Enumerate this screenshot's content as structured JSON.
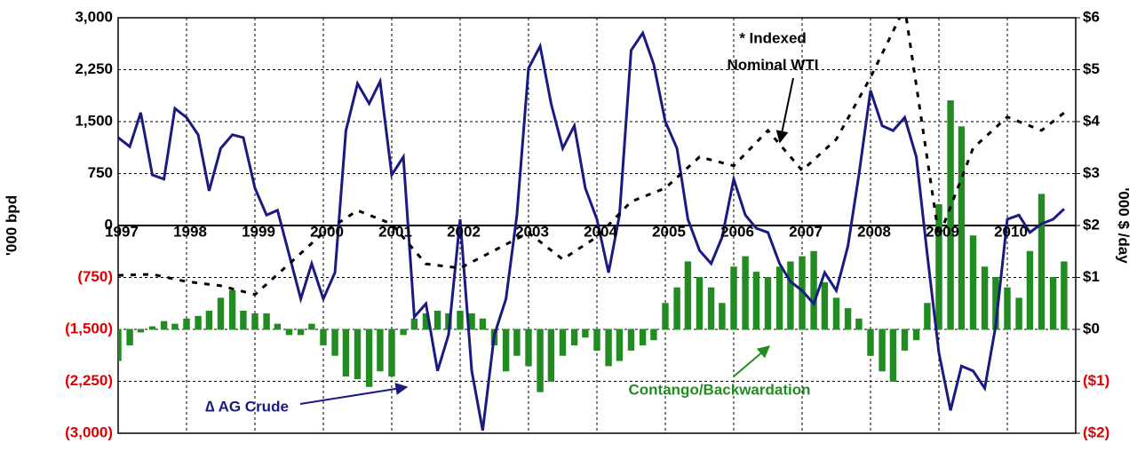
{
  "chart_data": {
    "type": "combo",
    "ylabel": "'000 bpd",
    "y2label": "'000 $ /day",
    "annotations": [
      "* Indexed",
      "Nominal WTI",
      "∆ AG Crude",
      "Contango/Backwardation"
    ],
    "grid": true,
    "xlim": [
      1997,
      2011
    ],
    "xticks": [
      1997,
      1998,
      1999,
      2000,
      2001,
      2002,
      2003,
      2004,
      2005,
      2006,
      2007,
      2008,
      2009,
      2010
    ],
    "ylim": [
      -3000,
      3000
    ],
    "yticks": [
      {
        "value": 3000,
        "label": "3,000"
      },
      {
        "value": 2250,
        "label": "2,250"
      },
      {
        "value": 1500,
        "label": "1,500"
      },
      {
        "value": 750,
        "label": "750"
      },
      {
        "value": 0,
        "label": "0"
      },
      {
        "value": -750,
        "label": "(750)"
      },
      {
        "value": -1500,
        "label": "(1,500)"
      },
      {
        "value": -2250,
        "label": "(2,250)"
      },
      {
        "value": -3000,
        "label": "(3,000)"
      }
    ],
    "y2lim": [
      -2,
      6
    ],
    "y2ticks": [
      {
        "value": 6,
        "label": "$6"
      },
      {
        "value": 5,
        "label": "$5"
      },
      {
        "value": 4,
        "label": "$4"
      },
      {
        "value": 3,
        "label": "$3"
      },
      {
        "value": 2,
        "label": "$2"
      },
      {
        "value": 1,
        "label": "$1"
      },
      {
        "value": 0,
        "label": "$0"
      },
      {
        "value": -1,
        "label": "($1)"
      },
      {
        "value": -2,
        "label": "($2)"
      }
    ],
    "x": [
      1997,
      1997.17,
      1997.33,
      1997.5,
      1997.67,
      1997.83,
      1998,
      1998.17,
      1998.33,
      1998.5,
      1998.67,
      1998.83,
      1999,
      1999.17,
      1999.33,
      1999.5,
      1999.67,
      1999.83,
      2000,
      2000.17,
      2000.33,
      2000.5,
      2000.67,
      2000.83,
      2001,
      2001.17,
      2001.33,
      2001.5,
      2001.67,
      2001.83,
      2002,
      2002.17,
      2002.33,
      2002.5,
      2002.67,
      2002.83,
      2003,
      2003.17,
      2003.33,
      2003.5,
      2003.67,
      2003.83,
      2004,
      2004.17,
      2004.33,
      2004.5,
      2004.67,
      2004.83,
      2005,
      2005.17,
      2005.33,
      2005.5,
      2005.67,
      2005.83,
      2006,
      2006.17,
      2006.33,
      2006.5,
      2006.67,
      2006.83,
      2007,
      2007.17,
      2007.33,
      2007.5,
      2007.67,
      2007.83,
      2008,
      2008.17,
      2008.33,
      2008.5,
      2008.67,
      2008.83,
      2009,
      2009.17,
      2009.33,
      2009.5,
      2009.67,
      2009.83,
      2010,
      2010.17,
      2010.33,
      2010.5,
      2010.67,
      2010.83
    ],
    "series": [
      {
        "type": "bar",
        "axis": "y2",
        "color": "#228b22",
        "values": [
          -0.6,
          -0.3,
          -0.05,
          0.05,
          0.15,
          0.1,
          0.2,
          0.25,
          0.35,
          0.6,
          0.75,
          0.35,
          0.3,
          0.3,
          0.1,
          -0.1,
          -0.1,
          0.1,
          -0.3,
          -0.5,
          -0.9,
          -0.95,
          -1.1,
          -0.8,
          -0.9,
          -0.1,
          0.2,
          0.3,
          0.35,
          0.3,
          0.35,
          0.3,
          0.2,
          -0.3,
          -0.8,
          -0.5,
          -0.7,
          -1.2,
          -1.0,
          -0.5,
          -0.3,
          -0.15,
          -0.4,
          -0.7,
          -0.6,
          -0.4,
          -0.3,
          -0.2,
          0.5,
          0.8,
          1.3,
          1.0,
          0.8,
          0.5,
          1.2,
          1.4,
          1.1,
          1.0,
          1.2,
          1.3,
          1.4,
          1.5,
          0.9,
          0.6,
          0.4,
          0.2,
          -0.5,
          -0.8,
          -1.0,
          -0.4,
          -0.2,
          0.5,
          2.4,
          4.4,
          3.9,
          1.8,
          1.2,
          1.0,
          0.8,
          0.6,
          1.5,
          2.6,
          1.0,
          1.3
        ]
      },
      {
        "type": "line",
        "axis": "y",
        "color": "#1a1a80",
        "values": [
          1270,
          1140,
          1630,
          730,
          670,
          1690,
          1560,
          1310,
          500,
          1115,
          1310,
          1270,
          540,
          150,
          220,
          -420,
          -1060,
          -550,
          -1060,
          -680,
          1370,
          2050,
          1760,
          2080,
          730,
          990,
          -1320,
          -1130,
          -2100,
          -1580,
          90,
          -2100,
          -2960,
          -1580,
          -1060,
          150,
          2270,
          2590,
          1760,
          1115,
          1440,
          540,
          90,
          -680,
          150,
          2530,
          2780,
          2330,
          1500,
          1115,
          90,
          -360,
          -550,
          -170,
          670,
          150,
          -40,
          -100,
          -550,
          -810,
          -940,
          -1130,
          -680,
          -940,
          -295,
          730,
          1950,
          1440,
          1370,
          1560,
          990,
          -420,
          -1840,
          -2670,
          -2030,
          -2100,
          -2350,
          -1450,
          90,
          150,
          -100,
          25,
          90,
          240
        ]
      },
      {
        "type": "dotted",
        "axis": "y2",
        "color": "#000000",
        "x": [
          1997,
          1997.5,
          1998,
          1998.5,
          1999,
          1999.5,
          2000,
          2000.5,
          2001,
          2001.5,
          2002,
          2002.5,
          2003,
          2003.5,
          2004,
          2004.5,
          2005,
          2005.5,
          2006,
          2006.5,
          2007,
          2007.5,
          2008,
          2008.5,
          2009,
          2009.5,
          2010,
          2010.5,
          2010.83
        ],
        "values": [
          1.04,
          1.06,
          0.92,
          0.84,
          0.67,
          1.26,
          1.86,
          2.29,
          2.03,
          1.26,
          1.18,
          1.52,
          1.86,
          1.35,
          1.78,
          2.46,
          2.72,
          3.32,
          3.15,
          3.83,
          3.06,
          3.66,
          4.85,
          6.2,
          1.78,
          3.49,
          4.09,
          3.83,
          4.17
        ]
      }
    ]
  }
}
